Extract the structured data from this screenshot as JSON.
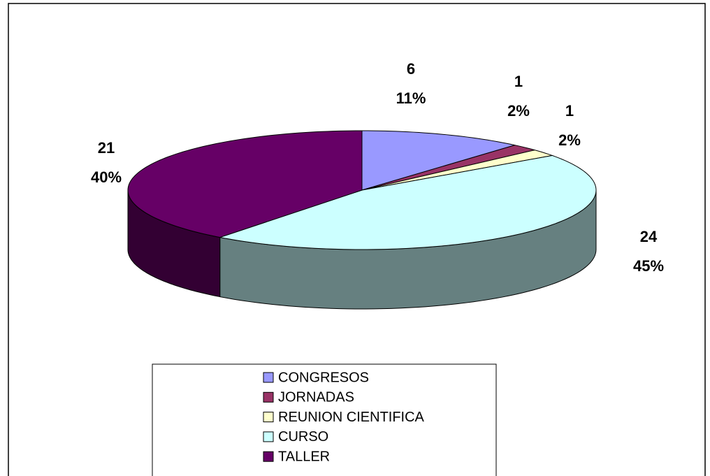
{
  "chart_data": {
    "type": "pie",
    "categories": [
      "CONGRESOS",
      "JORNADAS",
      "REUNION CIENTIFICA",
      "CURSO",
      "TALLER"
    ],
    "values": [
      6,
      1,
      1,
      24,
      21
    ],
    "value_labels": [
      "11%",
      "2%",
      "2%",
      "45%",
      "40%"
    ],
    "colors": [
      "#9999ff",
      "#993366",
      "#ffffcc",
      "#ccffff",
      "#660066"
    ],
    "legend": "bottom"
  }
}
